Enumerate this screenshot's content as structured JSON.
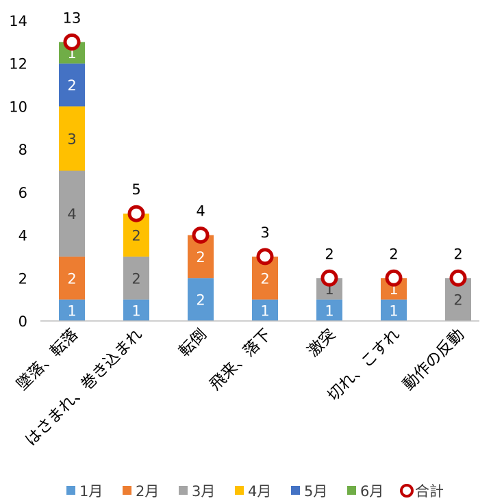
{
  "chart_data": {
    "type": "bar",
    "stacked": true,
    "categories": [
      "墜落、転落",
      "はさまれ、巻き込まれ",
      "転倒",
      "飛来、落下",
      "激突",
      "切れ、こすれ",
      "動作の反動"
    ],
    "series": [
      {
        "name": "1月",
        "color": "#5b9bd5",
        "values": [
          1,
          1,
          2,
          1,
          1,
          1,
          0
        ]
      },
      {
        "name": "2月",
        "color": "#ed7d31",
        "values": [
          2,
          0,
          2,
          2,
          0,
          1,
          0
        ]
      },
      {
        "name": "3月",
        "color": "#a5a5a5",
        "values": [
          4,
          2,
          0,
          0,
          1,
          0,
          2
        ]
      },
      {
        "name": "4月",
        "color": "#ffc000",
        "values": [
          3,
          2,
          0,
          0,
          0,
          0,
          0
        ]
      },
      {
        "name": "5月",
        "color": "#4472c4",
        "values": [
          2,
          0,
          0,
          0,
          0,
          0,
          0
        ]
      },
      {
        "name": "6月",
        "color": "#70ad47",
        "values": [
          1,
          0,
          0,
          0,
          0,
          0,
          0
        ]
      }
    ],
    "total": {
      "name": "合計",
      "marker_color": "#c00000",
      "values": [
        13,
        5,
        4,
        3,
        2,
        2,
        2
      ]
    },
    "y_ticks": [
      0,
      2,
      4,
      6,
      8,
      10,
      12,
      14
    ],
    "ylim": [
      0,
      14
    ],
    "grid": false,
    "legend_position": "bottom",
    "title": "",
    "xlabel": "",
    "ylabel": ""
  }
}
